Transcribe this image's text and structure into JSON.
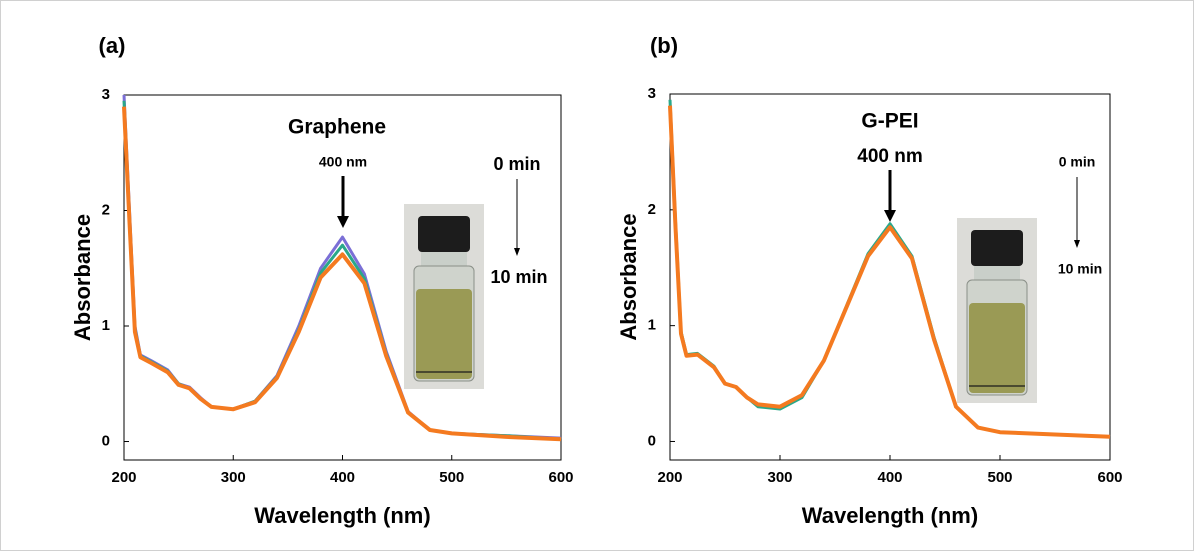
{
  "chart_data": [
    {
      "type": "line",
      "panel_label": "(a)",
      "title": "Graphene",
      "peak_label": "400 nm",
      "start_label": "0 min",
      "end_label": "10 min",
      "xlabel": "Wavelength (nm)",
      "ylabel": "Absorbance",
      "x": [
        200,
        205,
        210,
        215,
        225,
        240,
        250,
        260,
        270,
        280,
        300,
        320,
        340,
        360,
        380,
        400,
        420,
        440,
        460,
        480,
        500,
        550,
        600
      ],
      "xlim": [
        200,
        600
      ],
      "ylim": [
        -0.16,
        3
      ],
      "xticks": [
        200,
        300,
        400,
        500,
        600
      ],
      "yticks": [
        0,
        1,
        2,
        3
      ],
      "series": [
        {
          "color": "#7b6fd6",
          "values": [
            3.0,
            2.0,
            1.0,
            0.75,
            0.7,
            0.62,
            0.5,
            0.47,
            0.38,
            0.3,
            0.28,
            0.35,
            0.57,
            1.0,
            1.5,
            1.77,
            1.45,
            0.78,
            0.26,
            0.1,
            0.07,
            0.05,
            0.03
          ]
        },
        {
          "color": "#2aa88a",
          "values": [
            2.95,
            1.95,
            0.98,
            0.74,
            0.69,
            0.61,
            0.5,
            0.46,
            0.37,
            0.3,
            0.28,
            0.35,
            0.56,
            0.97,
            1.46,
            1.7,
            1.41,
            0.76,
            0.25,
            0.1,
            0.07,
            0.05,
            0.02
          ]
        },
        {
          "color": "#f47a20",
          "values": [
            2.9,
            1.9,
            0.95,
            0.73,
            0.68,
            0.6,
            0.49,
            0.46,
            0.37,
            0.3,
            0.28,
            0.34,
            0.55,
            0.95,
            1.42,
            1.62,
            1.37,
            0.74,
            0.25,
            0.1,
            0.07,
            0.04,
            0.02
          ]
        }
      ]
    },
    {
      "type": "line",
      "panel_label": "(b)",
      "title": "G-PEI",
      "peak_label": "400 nm",
      "start_label": "0 min",
      "end_label": "10 min",
      "xlabel": "Wavelength (nm)",
      "ylabel": "Absorbance",
      "x": [
        200,
        205,
        210,
        215,
        225,
        240,
        250,
        260,
        270,
        280,
        300,
        320,
        340,
        360,
        380,
        400,
        420,
        440,
        460,
        480,
        500,
        550,
        600
      ],
      "xlim": [
        200,
        600
      ],
      "ylim": [
        -0.16,
        3
      ],
      "xticks": [
        200,
        300,
        400,
        500,
        600
      ],
      "yticks": [
        0,
        1,
        2,
        3
      ],
      "series": [
        {
          "color": "#2aa88a",
          "values": [
            2.95,
            1.9,
            0.95,
            0.75,
            0.76,
            0.65,
            0.5,
            0.47,
            0.38,
            0.3,
            0.28,
            0.38,
            0.7,
            1.16,
            1.62,
            1.88,
            1.6,
            0.9,
            0.3,
            0.12,
            0.08,
            0.06,
            0.04
          ]
        },
        {
          "color": "#f47a20",
          "values": [
            2.9,
            1.85,
            0.93,
            0.74,
            0.75,
            0.64,
            0.5,
            0.47,
            0.38,
            0.32,
            0.3,
            0.4,
            0.7,
            1.15,
            1.6,
            1.85,
            1.58,
            0.88,
            0.3,
            0.12,
            0.08,
            0.06,
            0.04
          ]
        }
      ]
    }
  ]
}
